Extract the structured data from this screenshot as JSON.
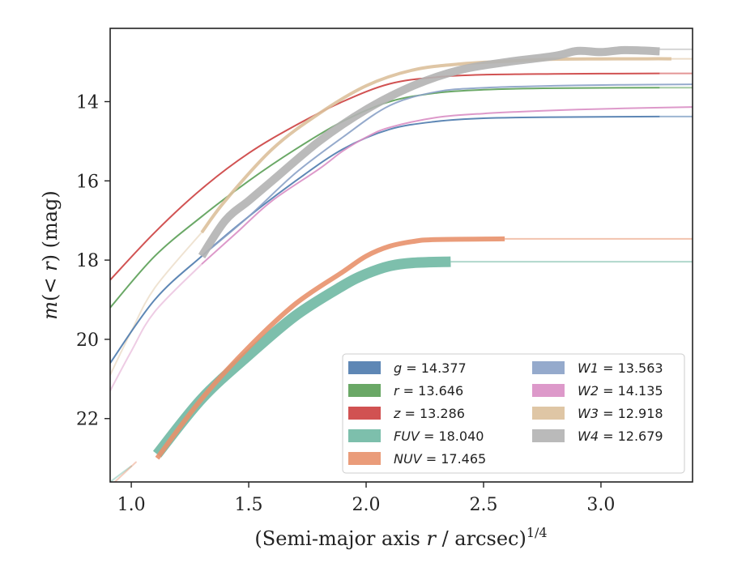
{
  "chart_data": {
    "type": "line",
    "xlabel": "(Semi-major axis r / arcsec)^1/4",
    "ylabel": "m(< r) (mag)",
    "xlim": [
      0.91,
      3.39
    ],
    "ylim": [
      23.6,
      12.15
    ],
    "y_inverted": true,
    "x_ticks": [
      "1.0",
      "1.5",
      "2.0",
      "2.5",
      "3.0"
    ],
    "y_ticks": [
      "14",
      "16",
      "18",
      "20",
      "22"
    ],
    "grid": false,
    "legend_placement": "lower-right",
    "series": [
      {
        "name": "g = 14.377",
        "color": "#4c7aad",
        "width": 2,
        "x": [
          0.91,
          1.1,
          1.3,
          1.5,
          1.7,
          1.9,
          2.1,
          2.3,
          2.5,
          2.8,
          3.25
        ],
        "y": [
          20.6,
          19.0,
          17.9,
          16.9,
          16.0,
          15.2,
          14.7,
          14.5,
          14.42,
          14.39,
          14.377
        ],
        "faint_x": [
          3.25,
          3.39
        ],
        "faint_y": [
          14.377,
          14.377
        ]
      },
      {
        "name": "r = 13.646",
        "color": "#5a9e55",
        "width": 2,
        "x": [
          0.91,
          1.1,
          1.3,
          1.5,
          1.7,
          1.9,
          2.1,
          2.3,
          2.5,
          2.8,
          3.25
        ],
        "y": [
          19.2,
          17.9,
          16.9,
          16.0,
          15.2,
          14.5,
          14.0,
          13.78,
          13.7,
          13.66,
          13.646
        ],
        "faint_x": [
          3.25,
          3.39
        ],
        "faint_y": [
          13.646,
          13.646
        ]
      },
      {
        "name": "z = 13.286",
        "color": "#cc3f3f",
        "width": 2,
        "x": [
          0.91,
          1.1,
          1.3,
          1.5,
          1.7,
          1.9,
          2.1,
          2.3,
          2.5,
          2.8,
          3.25
        ],
        "y": [
          18.5,
          17.3,
          16.2,
          15.3,
          14.6,
          14.0,
          13.55,
          13.38,
          13.32,
          13.3,
          13.286
        ],
        "faint_x": [
          3.25,
          3.39
        ],
        "faint_y": [
          13.286,
          13.286
        ]
      },
      {
        "name": "FUV = 18.040",
        "color": "#6fb8a3",
        "width": 13,
        "x": [
          1.11,
          1.3,
          1.5,
          1.7,
          1.9,
          2.0,
          2.1,
          2.2,
          2.36
        ],
        "y": [
          22.9,
          21.5,
          20.4,
          19.4,
          18.65,
          18.35,
          18.15,
          18.07,
          18.04
        ],
        "faint_x": [
          2.36,
          3.39
        ],
        "faint_y": [
          18.04,
          18.04
        ]
      },
      {
        "name": "NUV = 17.465",
        "color": "#e8916c",
        "width": 6,
        "x": [
          1.11,
          1.3,
          1.5,
          1.7,
          1.9,
          2.0,
          2.1,
          2.2,
          2.3,
          2.59
        ],
        "y": [
          23.0,
          21.5,
          20.2,
          19.1,
          18.3,
          17.9,
          17.65,
          17.53,
          17.48,
          17.465
        ],
        "faint_x": [
          2.59,
          3.39
        ],
        "faint_y": [
          17.465,
          17.465
        ]
      },
      {
        "name": "W1 = 13.563",
        "color": "#8aa1c6",
        "width": 2,
        "x": [
          1.3,
          1.5,
          1.7,
          1.9,
          2.1,
          2.3,
          2.5,
          2.8,
          3.1,
          3.39
        ],
        "y": [
          17.9,
          16.9,
          15.8,
          14.9,
          14.1,
          13.75,
          13.65,
          13.6,
          13.575,
          13.563
        ]
      },
      {
        "name": "W2 = 14.135",
        "color": "#d98ec4",
        "width": 2,
        "x": [
          1.3,
          1.45,
          1.6,
          1.8,
          1.9,
          2.0,
          2.1,
          2.3,
          2.5,
          2.8,
          3.1,
          3.39
        ],
        "y": [
          18.1,
          17.3,
          16.5,
          15.7,
          15.25,
          14.9,
          14.65,
          14.4,
          14.3,
          14.22,
          14.17,
          14.135
        ]
      },
      {
        "name": "W3 = 12.918",
        "color": "#dcc09b",
        "width": 4,
        "x": [
          1.3,
          1.4,
          1.6,
          1.8,
          2.0,
          2.2,
          2.4,
          2.6,
          2.8,
          3.0,
          3.2,
          3.3
        ],
        "y": [
          17.3,
          16.5,
          15.2,
          14.3,
          13.6,
          13.2,
          13.05,
          12.98,
          12.93,
          12.92,
          12.918,
          12.918
        ],
        "faint_x": [
          3.3,
          3.39
        ],
        "faint_y": [
          12.918,
          12.918
        ]
      },
      {
        "name": "W4 = 12.679",
        "color": "#b2b2b2",
        "width": 10,
        "x": [
          1.3,
          1.4,
          1.5,
          1.6,
          1.8,
          2.0,
          2.2,
          2.4,
          2.6,
          2.8,
          2.9,
          3.0,
          3.1,
          3.25
        ],
        "y": [
          17.9,
          17.0,
          16.5,
          16.0,
          15.0,
          14.2,
          13.6,
          13.2,
          13.0,
          12.85,
          12.72,
          12.75,
          12.7,
          12.73
        ],
        "faint_x": [
          3.25,
          3.39
        ],
        "faint_y": [
          12.679,
          12.679
        ]
      }
    ],
    "extra_faint": [
      {
        "color": "#6fb8a3",
        "x": [
          0.91,
          1.0
        ],
        "y": [
          23.6,
          23.2
        ]
      },
      {
        "color": "#e8916c",
        "x": [
          0.93,
          1.02
        ],
        "y": [
          23.6,
          23.1
        ]
      },
      {
        "color": "#d98ec4",
        "x": [
          0.91,
          1.0,
          1.1,
          1.3
        ],
        "y": [
          21.3,
          20.3,
          19.3,
          18.1
        ]
      },
      {
        "color": "#dcc09b",
        "x": [
          0.91,
          1.0,
          1.1,
          1.3
        ],
        "y": [
          20.9,
          19.8,
          18.7,
          17.3
        ]
      }
    ]
  }
}
